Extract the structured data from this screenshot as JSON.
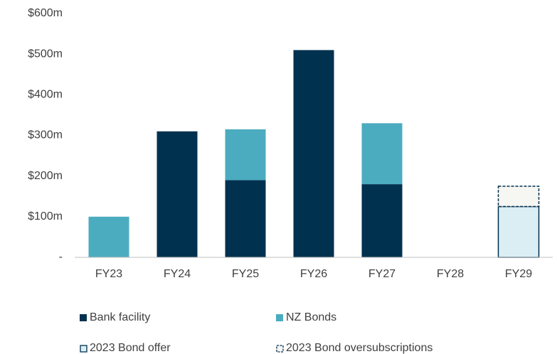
{
  "chart_data": {
    "type": "stacked_bar",
    "categories": [
      "FY23",
      "FY24",
      "FY25",
      "FY26",
      "FY27",
      "FY28",
      "FY29"
    ],
    "series": [
      {
        "name": "Bank facility",
        "color": "#00314f",
        "values": [
          null,
          310,
          190,
          510,
          180,
          null,
          null
        ]
      },
      {
        "name": "NZ Bonds",
        "color": "#4bacbf",
        "values": [
          100,
          null,
          125,
          null,
          150,
          null,
          null
        ]
      },
      {
        "name": "2023 Bond offer",
        "color": "#dbeef4",
        "stroke": "#00314f",
        "values": [
          null,
          null,
          null,
          null,
          null,
          null,
          125
        ]
      },
      {
        "name": "2023 Bond oversubscriptions",
        "color": "#f6f6f2",
        "stroke": "#00314f",
        "dashed": true,
        "values": [
          null,
          null,
          null,
          null,
          null,
          null,
          50
        ]
      }
    ],
    "ylim": [
      0,
      600
    ],
    "yticks": [
      {
        "value": 0,
        "label": "-"
      },
      {
        "value": 100,
        "label": "$100m"
      },
      {
        "value": 200,
        "label": "$200m"
      },
      {
        "value": 300,
        "label": "$300m"
      },
      {
        "value": 400,
        "label": "$400m"
      },
      {
        "value": 500,
        "label": "$500m"
      },
      {
        "value": 600,
        "label": "$600m"
      }
    ],
    "grid": false
  }
}
